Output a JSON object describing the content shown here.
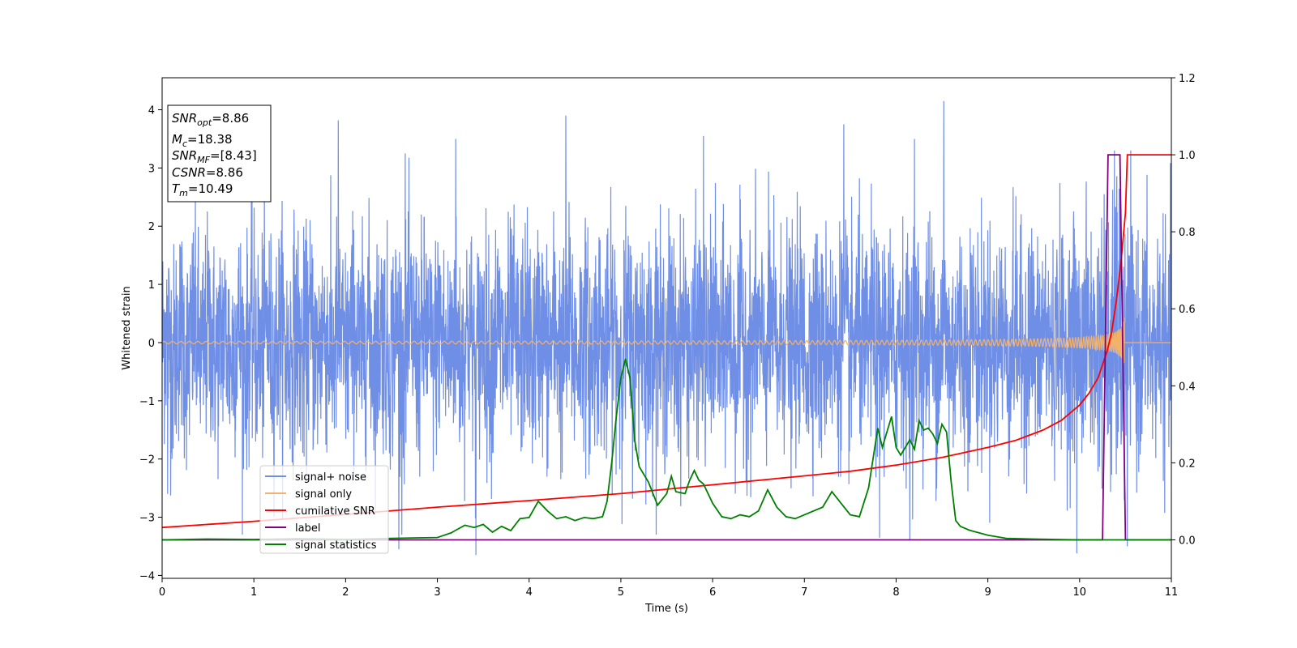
{
  "chart_data": {
    "type": "line",
    "xlabel": "Time (s)",
    "ylabel": "Whitened strain",
    "xlim": [
      0,
      11
    ],
    "ylim": [
      -4.05,
      4.55
    ],
    "y2lim": [
      -0.1,
      1.2
    ],
    "xticks": [
      0,
      1,
      2,
      3,
      4,
      5,
      6,
      7,
      8,
      9,
      10,
      11
    ],
    "yticks": [
      -4,
      -3,
      -2,
      -1,
      0,
      1,
      2,
      3,
      4
    ],
    "y2ticks": [
      0.0,
      0.2,
      0.4,
      0.6,
      0.8,
      1.0,
      1.2
    ],
    "grid": false,
    "legend_position": "lower-left",
    "info_box": {
      "lines": [
        {
          "base": "SNR",
          "sub": "opt",
          "value": "=8.86"
        },
        {
          "base": "M",
          "sub": "c",
          "value": "=18.38"
        },
        {
          "base": "SNR",
          "sub": "MF",
          "value": "=[8.43]"
        },
        {
          "base": "CSNR",
          "sub": "",
          "value": "=8.86"
        },
        {
          "base": "T",
          "sub": "m",
          "value": "=10.49"
        }
      ]
    },
    "series": [
      {
        "name": "signal+ noise",
        "axis": "left",
        "color": "#6f8ee6",
        "kind": "noise",
        "envelope": {
          "x": [
            0,
            10.1,
            10.3,
            10.45,
            10.5,
            11
          ],
          "amp": [
            1.0,
            1.0,
            1.25,
            1.6,
            1.0,
            1.0
          ]
        },
        "peaks": [
          {
            "x": 1.92,
            "y": 3.82
          },
          {
            "x": 4.4,
            "y": 3.9
          },
          {
            "x": 8.52,
            "y": 4.15
          },
          {
            "x": 2.65,
            "y": 3.25
          },
          {
            "x": 3.2,
            "y": 3.5
          },
          {
            "x": 5.9,
            "y": 3.55
          },
          {
            "x": 7.43,
            "y": 3.75
          },
          {
            "x": 8.2,
            "y": 3.5
          },
          {
            "x": 3.42,
            "y": -3.65
          },
          {
            "x": 2.58,
            "y": -3.55
          },
          {
            "x": 9.97,
            "y": -3.62
          },
          {
            "x": 10.52,
            "y": -3.5
          },
          {
            "x": 8.15,
            "y": -3.4
          },
          {
            "x": 7.82,
            "y": -3.35
          },
          {
            "x": 0.06,
            "y": -2.6
          }
        ]
      },
      {
        "name": "signal only",
        "axis": "left",
        "color": "#f2b26b",
        "kind": "chirp",
        "t_merge": 10.49,
        "amp_start": 0.02,
        "amp_end": 0.6
      },
      {
        "name": "cumilative SNR",
        "axis": "right",
        "color": "#ff0000",
        "x": [
          0,
          1,
          2,
          3,
          4,
          5,
          6,
          7,
          7.5,
          8,
          8.5,
          9,
          9.3,
          9.6,
          9.8,
          10,
          10.1,
          10.2,
          10.3,
          10.35,
          10.4,
          10.45,
          10.5,
          10.52,
          11
        ],
        "y": [
          0.032,
          0.048,
          0.066,
          0.085,
          0.102,
          0.12,
          0.143,
          0.166,
          0.178,
          0.194,
          0.214,
          0.24,
          0.258,
          0.285,
          0.31,
          0.35,
          0.38,
          0.42,
          0.49,
          0.54,
          0.62,
          0.72,
          0.85,
          1.0,
          1.0
        ]
      },
      {
        "name": "label",
        "axis": "right",
        "color": "#800080",
        "x": [
          0,
          10.25,
          10.31,
          10.44,
          10.5,
          11
        ],
        "y": [
          0,
          0,
          1.0,
          1.0,
          0,
          0
        ]
      },
      {
        "name": "signal statistics",
        "axis": "right",
        "color": "#008000",
        "x": [
          0,
          0.5,
          1,
          1.5,
          2,
          2.5,
          3,
          3.05,
          3.15,
          3.2,
          3.3,
          3.4,
          3.5,
          3.6,
          3.7,
          3.8,
          3.9,
          4.0,
          4.1,
          4.2,
          4.3,
          4.4,
          4.5,
          4.6,
          4.7,
          4.8,
          4.85,
          4.9,
          4.95,
          5.0,
          5.05,
          5.1,
          5.15,
          5.2,
          5.3,
          5.4,
          5.5,
          5.55,
          5.6,
          5.7,
          5.75,
          5.8,
          5.85,
          5.9,
          6.0,
          6.1,
          6.2,
          6.3,
          6.4,
          6.5,
          6.6,
          6.7,
          6.8,
          6.9,
          7.0,
          7.1,
          7.2,
          7.3,
          7.4,
          7.5,
          7.6,
          7.7,
          7.8,
          7.85,
          7.9,
          7.95,
          8.0,
          8.05,
          8.1,
          8.15,
          8.2,
          8.25,
          8.3,
          8.35,
          8.4,
          8.45,
          8.5,
          8.55,
          8.6,
          8.65,
          8.7,
          8.8,
          9.0,
          9.2,
          9.5,
          10,
          11
        ],
        "y": [
          0,
          0.002,
          0.001,
          0.003,
          0.001,
          0.004,
          0.006,
          0.01,
          0.018,
          0.025,
          0.038,
          0.032,
          0.04,
          0.02,
          0.035,
          0.024,
          0.055,
          0.058,
          0.1,
          0.075,
          0.055,
          0.06,
          0.05,
          0.058,
          0.055,
          0.06,
          0.1,
          0.2,
          0.32,
          0.42,
          0.47,
          0.42,
          0.26,
          0.19,
          0.15,
          0.09,
          0.12,
          0.165,
          0.125,
          0.12,
          0.155,
          0.18,
          0.155,
          0.145,
          0.095,
          0.06,
          0.055,
          0.065,
          0.06,
          0.075,
          0.13,
          0.085,
          0.06,
          0.055,
          0.065,
          0.075,
          0.085,
          0.125,
          0.095,
          0.065,
          0.06,
          0.135,
          0.29,
          0.24,
          0.28,
          0.32,
          0.24,
          0.22,
          0.24,
          0.26,
          0.235,
          0.31,
          0.285,
          0.29,
          0.275,
          0.25,
          0.3,
          0.28,
          0.15,
          0.05,
          0.035,
          0.025,
          0.012,
          0.004,
          0.002,
          0,
          0
        ]
      }
    ]
  }
}
